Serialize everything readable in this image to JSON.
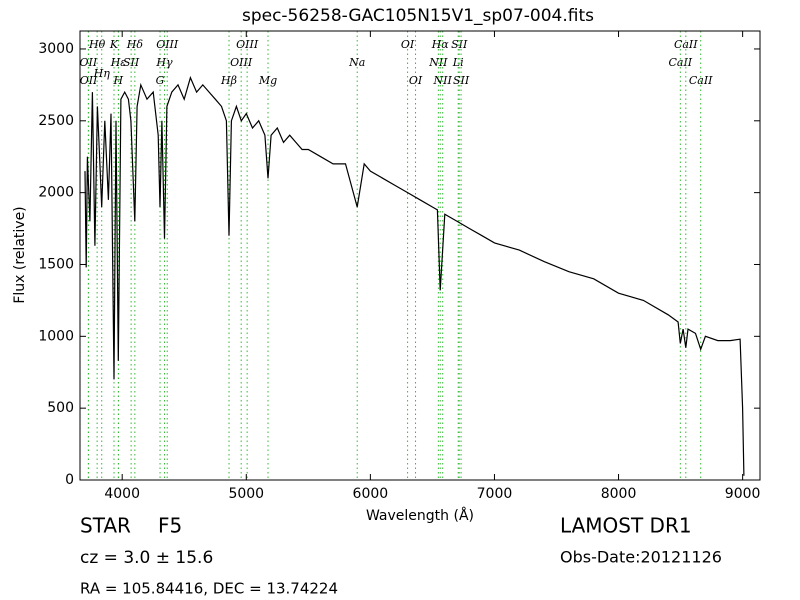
{
  "chart_data": {
    "type": "line",
    "title": "spec-56258-GAC105N15V1_sp07-004.fits",
    "xlabel": "Wavelength (Å)",
    "ylabel": "Flux (relative)",
    "x": [
      3700,
      3710,
      3720,
      3740,
      3760,
      3780,
      3800,
      3820,
      3835,
      3860,
      3889,
      3910,
      3934,
      3950,
      3969,
      3990,
      4020,
      4050,
      4070,
      4102,
      4120,
      4150,
      4200,
      4250,
      4290,
      4305,
      4320,
      4341,
      4360,
      4400,
      4450,
      4500,
      4550,
      4600,
      4650,
      4700,
      4750,
      4800,
      4840,
      4861,
      4880,
      4920,
      4960,
      5000,
      5050,
      5100,
      5150,
      5175,
      5200,
      5250,
      5300,
      5350,
      5400,
      5450,
      5500,
      5600,
      5700,
      5800,
      5894,
      5950,
      6000,
      6100,
      6200,
      6300,
      6400,
      6500,
      6540,
      6563,
      6600,
      6700,
      6800,
      6900,
      7000,
      7200,
      7400,
      7600,
      7800,
      8000,
      8200,
      8400,
      8480,
      8498,
      8520,
      8542,
      8560,
      8620,
      8662,
      8700,
      8800,
      8900,
      8980,
      9000,
      9010
    ],
    "values": [
      2150,
      1480,
      2250,
      1800,
      2700,
      1630,
      2600,
      2200,
      1900,
      2500,
      1950,
      2550,
      700,
      2500,
      830,
      2650,
      2700,
      2650,
      2500,
      1800,
      2600,
      2750,
      2650,
      2700,
      2400,
      1900,
      2500,
      1680,
      2600,
      2700,
      2750,
      2650,
      2800,
      2700,
      2750,
      2700,
      2650,
      2600,
      2500,
      1700,
      2500,
      2600,
      2500,
      2550,
      2450,
      2500,
      2400,
      2100,
      2400,
      2450,
      2350,
      2400,
      2350,
      2300,
      2300,
      2250,
      2200,
      2200,
      1900,
      2200,
      2150,
      2100,
      2050,
      2000,
      1950,
      1900,
      1880,
      1320,
      1850,
      1800,
      1750,
      1700,
      1650,
      1600,
      1520,
      1450,
      1400,
      1300,
      1250,
      1150,
      1100,
      950,
      1050,
      920,
      1050,
      1020,
      910,
      1000,
      970,
      970,
      980,
      500,
      30
    ],
    "color": "#000000",
    "xlim": [
      3660,
      9140
    ],
    "ylim": [
      0,
      3125
    ],
    "xticks": [
      4000,
      5000,
      6000,
      7000,
      8000,
      9000
    ],
    "yticks": [
      0,
      500,
      1000,
      1500,
      2000,
      2500,
      3000
    ],
    "grid": false,
    "line_color": "#33bb33",
    "lines": [
      {
        "wavelength": 3727,
        "label": "OII"
      },
      {
        "wavelength": 3729,
        "label": "OII"
      },
      {
        "wavelength": 3798,
        "label": "Hθ"
      },
      {
        "wavelength": 3835,
        "label": "Hη"
      },
      {
        "wavelength": 3934,
        "label": "K"
      },
      {
        "wavelength": 3969,
        "label": "H"
      },
      {
        "wavelength": 3970,
        "label": "Hε"
      },
      {
        "wavelength": 4072,
        "label": "SII"
      },
      {
        "wavelength": 4102,
        "label": "Hδ"
      },
      {
        "wavelength": 4305,
        "label": "G"
      },
      {
        "wavelength": 4341,
        "label": "Hγ"
      },
      {
        "wavelength": 4363,
        "label": "OIII"
      },
      {
        "wavelength": 4861,
        "label": "Hβ"
      },
      {
        "wavelength": 4959,
        "label": "OIII"
      },
      {
        "wavelength": 5007,
        "label": "OIII"
      },
      {
        "wavelength": 5175,
        "label": "Mg"
      },
      {
        "wavelength": 5894,
        "label": "Na"
      },
      {
        "wavelength": 6300,
        "label": "OI"
      },
      {
        "wavelength": 6364,
        "label": "OI"
      },
      {
        "wavelength": 6548,
        "label": "NII"
      },
      {
        "wavelength": 6563,
        "label": "Hα"
      },
      {
        "wavelength": 6583,
        "label": "NII"
      },
      {
        "wavelength": 6708,
        "label": "Li"
      },
      {
        "wavelength": 6716,
        "label": "SII"
      },
      {
        "wavelength": 6731,
        "label": "SII"
      },
      {
        "wavelength": 8498,
        "label": "CaII"
      },
      {
        "wavelength": 8542,
        "label": "CaII"
      },
      {
        "wavelength": 8662,
        "label": "CaII"
      }
    ],
    "info": {
      "class": "STAR",
      "subclass": "F5",
      "redshift": "cz = 3.0 ± 15.6",
      "position": "RA = 105.84416, DEC = 13.74224",
      "survey": "LAMOST DR1",
      "date": "Obs-Date:20121126"
    }
  }
}
